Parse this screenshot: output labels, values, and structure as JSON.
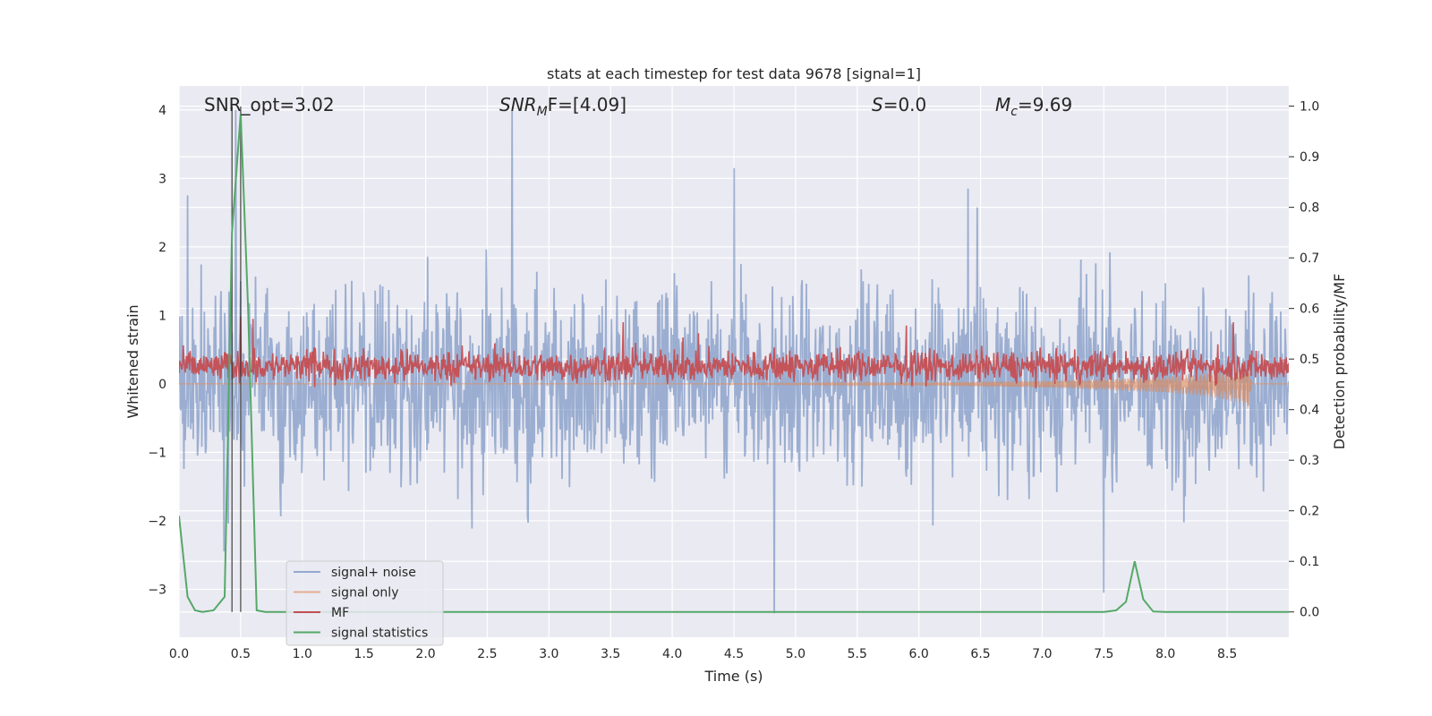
{
  "chart_data": {
    "type": "line",
    "title": "stats at each timestep for test data 9678 [signal=1]",
    "xlabel": "Time (s)",
    "ylabel_left": "Whitened strain",
    "ylabel_right": "Detection probability/MF",
    "xlim": [
      0.0,
      9.0
    ],
    "ylim_left": [
      -3.7,
      4.35
    ],
    "ylim_right": [
      -0.05,
      1.04
    ],
    "x_ticks": [
      "0.0",
      "0.5",
      "1.0",
      "1.5",
      "2.0",
      "2.5",
      "3.0",
      "3.5",
      "4.0",
      "4.5",
      "5.0",
      "5.5",
      "6.0",
      "6.5",
      "7.0",
      "7.5",
      "8.0",
      "8.5"
    ],
    "y_ticks_left": [
      "−3",
      "−2",
      "−1",
      "0",
      "1",
      "2",
      "3",
      "4"
    ],
    "y_ticks_right": [
      "0.0",
      "0.1",
      "0.2",
      "0.3",
      "0.4",
      "0.5",
      "0.6",
      "0.7",
      "0.8",
      "0.9",
      "1.0"
    ],
    "grid": true,
    "legend_position": "lower-left",
    "annotations": {
      "snr_opt": "SNR_opt=3.02",
      "snr_mf_prefix": "SNR",
      "snr_mf_sub": "M",
      "snr_mf_suffix": "F=[4.09]",
      "s_var": "S",
      "s_val": "=0.0",
      "mc_var": "M",
      "mc_sub": "c",
      "mc_val": "=9.69"
    },
    "vertical_markers": [
      0.43,
      0.5
    ],
    "series": [
      {
        "name": "signal+ noise",
        "color": "#4c72b0",
        "style": "noise band approx. −1.8 to 1.8 with peaks to 4.0 and −3.35",
        "peaks": [
          [
            0.07,
            2.75
          ],
          [
            0.46,
            4.0
          ],
          [
            0.53,
            -1.5
          ],
          [
            2.7,
            4.0
          ],
          [
            4.5,
            3.15
          ],
          [
            4.83,
            -3.35
          ],
          [
            6.4,
            2.85
          ],
          [
            7.5,
            -3.05
          ]
        ]
      },
      {
        "name": "signal only",
        "color": "#dd8452",
        "x": [
          0.0,
          4.0,
          6.0,
          7.0,
          7.5,
          8.0,
          8.3,
          8.6,
          8.68,
          8.7,
          9.0
        ],
        "envelope": [
          0.0,
          0.0,
          0.02,
          0.05,
          0.08,
          0.12,
          0.16,
          0.25,
          0.35,
          0.0,
          0.0
        ]
      },
      {
        "name": "MF",
        "color": "#c44e52",
        "style": "noise band approx. 0.05 to 0.65 with peaks to 0.98",
        "baseline": 0.25,
        "peaks": [
          [
            0.5,
            0.98
          ],
          [
            0.6,
            0.95
          ],
          [
            3.6,
            0.9
          ],
          [
            5.9,
            0.85
          ],
          [
            8.55,
            0.9
          ]
        ]
      },
      {
        "name": "signal statistics",
        "color": "#55a868",
        "axis": "right",
        "x": [
          0.0,
          0.07,
          0.13,
          0.19,
          0.28,
          0.37,
          0.43,
          0.5,
          0.56,
          0.63,
          0.7,
          1.0,
          7.5,
          7.6,
          7.68,
          7.75,
          7.82,
          7.9,
          8.0,
          9.0
        ],
        "values": [
          0.19,
          0.03,
          0.003,
          0.0,
          0.003,
          0.03,
          0.75,
          0.985,
          0.6,
          0.003,
          0.0,
          0.0,
          0.0,
          0.003,
          0.02,
          0.1,
          0.025,
          0.001,
          0.0,
          0.0
        ]
      }
    ]
  }
}
